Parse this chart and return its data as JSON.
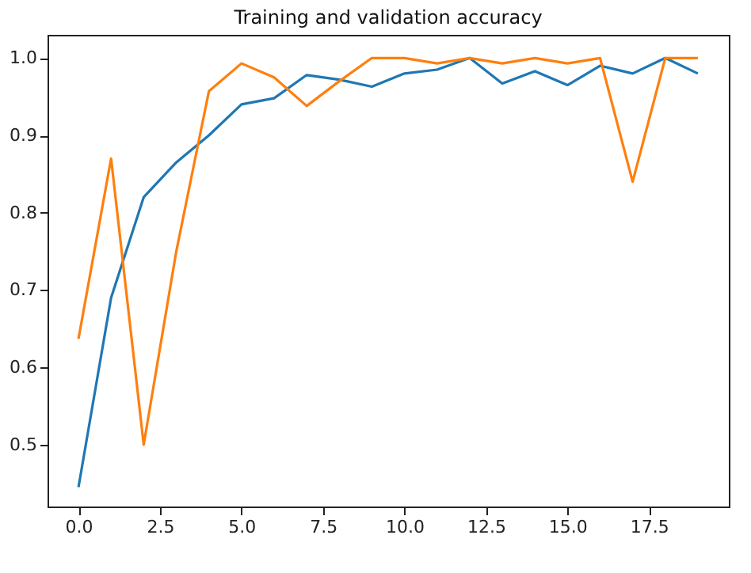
{
  "chart_data": {
    "type": "line",
    "title": "Training and validation accuracy",
    "x": [
      0,
      1,
      2,
      3,
      4,
      5,
      6,
      7,
      8,
      9,
      10,
      11,
      12,
      13,
      14,
      15,
      16,
      17,
      18,
      19
    ],
    "series": [
      {
        "color": "#1f77b4",
        "values": [
          0.445,
          0.69,
          0.82,
          0.865,
          0.9,
          0.94,
          0.948,
          0.978,
          0.972,
          0.963,
          0.98,
          0.985,
          1.0,
          0.967,
          0.983,
          0.965,
          0.99,
          0.98,
          1.0,
          0.98
        ]
      },
      {
        "color": "#ff7f0e",
        "values": [
          0.637,
          0.87,
          0.5,
          0.75,
          0.957,
          0.993,
          0.975,
          0.938,
          0.97,
          1.0,
          1.0,
          0.993,
          1.0,
          0.993,
          1.0,
          0.993,
          1.0,
          0.84,
          1.0,
          1.0
        ]
      }
    ],
    "xlim": [
      -0.95,
      19.95
    ],
    "xticks": [
      {
        "value": 0,
        "label": "0.0"
      },
      {
        "value": 2.5,
        "label": "2.5"
      },
      {
        "value": 5,
        "label": "5.0"
      },
      {
        "value": 7.5,
        "label": "7.5"
      },
      {
        "value": 10,
        "label": "10.0"
      },
      {
        "value": 12.5,
        "label": "12.5"
      },
      {
        "value": 15,
        "label": "15.0"
      },
      {
        "value": 17.5,
        "label": "17.5"
      }
    ],
    "ylim": [
      0.42,
      1.03
    ],
    "yticks": [
      {
        "value": 0.5,
        "label": "0.5"
      },
      {
        "value": 0.6,
        "label": "0.6"
      },
      {
        "value": 0.7,
        "label": "0.7"
      },
      {
        "value": 0.8,
        "label": "0.8"
      },
      {
        "value": 0.9,
        "label": "0.9"
      },
      {
        "value": 1.0,
        "label": "1.0"
      }
    ],
    "grid": false,
    "legend": false
  }
}
